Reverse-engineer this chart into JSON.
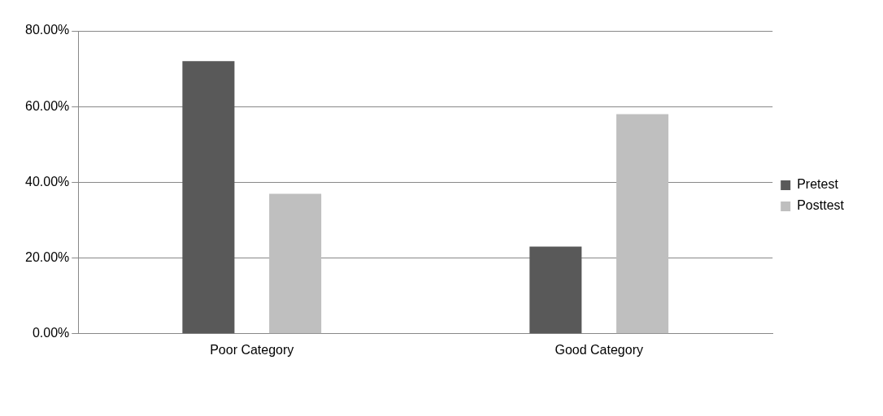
{
  "chart_data": {
    "type": "bar",
    "categories": [
      "Poor Category",
      "Good Category"
    ],
    "series": [
      {
        "name": "Pretest",
        "color": "#595959",
        "values": [
          72,
          23
        ]
      },
      {
        "name": "Posttest",
        "color": "#bfbfbf",
        "values": [
          37,
          58
        ]
      }
    ],
    "ylim": [
      0,
      80
    ],
    "yticks": [
      {
        "value": 0,
        "label": "0.00%"
      },
      {
        "value": 20,
        "label": "20.00%"
      },
      {
        "value": 40,
        "label": "40.00%"
      },
      {
        "value": 60,
        "label": "60.00%"
      },
      {
        "value": 80,
        "label": "80.00%"
      }
    ],
    "grid": "y",
    "legend": "right"
  }
}
